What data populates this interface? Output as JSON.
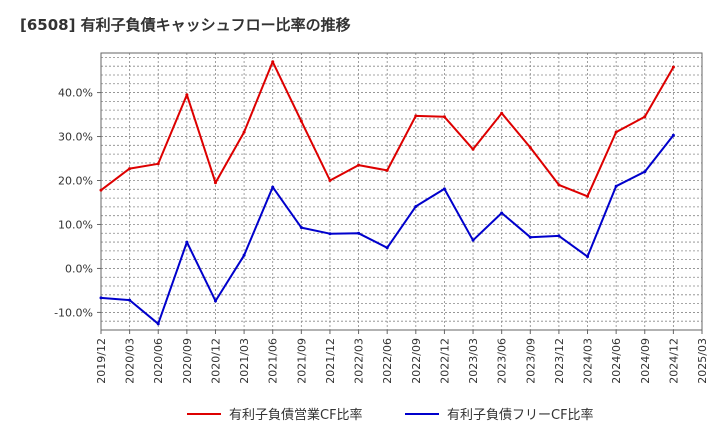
{
  "title": "[6508]  有利子負債キャッシュフロー比率の推移",
  "chart_data": {
    "type": "line",
    "title": "[6508]  有利子負債キャッシュフロー比率の推移",
    "x": [
      "2019/12",
      "2020/03",
      "2020/06",
      "2020/09",
      "2020/12",
      "2021/03",
      "2021/06",
      "2021/09",
      "2021/12",
      "2022/03",
      "2022/06",
      "2022/09",
      "2022/12",
      "2023/03",
      "2023/06",
      "2023/09",
      "2023/12",
      "2024/03",
      "2024/06",
      "2024/09",
      "2024/12"
    ],
    "x_ticks": [
      "2019/12",
      "2020/03",
      "2020/06",
      "2020/09",
      "2020/12",
      "2021/03",
      "2021/06",
      "2021/09",
      "2021/12",
      "2022/03",
      "2022/06",
      "2022/09",
      "2022/12",
      "2023/03",
      "2023/06",
      "2023/09",
      "2023/12",
      "2024/03",
      "2024/06",
      "2024/09",
      "2024/12",
      "2025/03"
    ],
    "y_ticks": [
      "-10.0%",
      "0.0%",
      "10.0%",
      "20.0%",
      "30.0%",
      "40.0%"
    ],
    "ylim": [
      -14,
      49
    ],
    "grid": true,
    "legend_position": "bottom",
    "series": [
      {
        "name": "有利子負債営業CF比率",
        "color": "#dd0000",
        "values": [
          17.8,
          22.7,
          23.8,
          39.5,
          19.5,
          31.0,
          47.0,
          33.5,
          20.0,
          23.5,
          22.3,
          34.7,
          34.5,
          27.1,
          35.3,
          27.5,
          19.0,
          16.4,
          31.0,
          34.5,
          45.8
        ]
      },
      {
        "name": "有利子負債フリーCF比率",
        "color": "#0000cc",
        "values": [
          -6.7,
          -7.2,
          -12.6,
          6.0,
          -7.4,
          3.0,
          18.5,
          9.3,
          7.9,
          8.0,
          4.7,
          14.1,
          18.1,
          6.4,
          12.6,
          7.1,
          7.4,
          2.7,
          18.7,
          22.0,
          30.3
        ]
      }
    ]
  }
}
